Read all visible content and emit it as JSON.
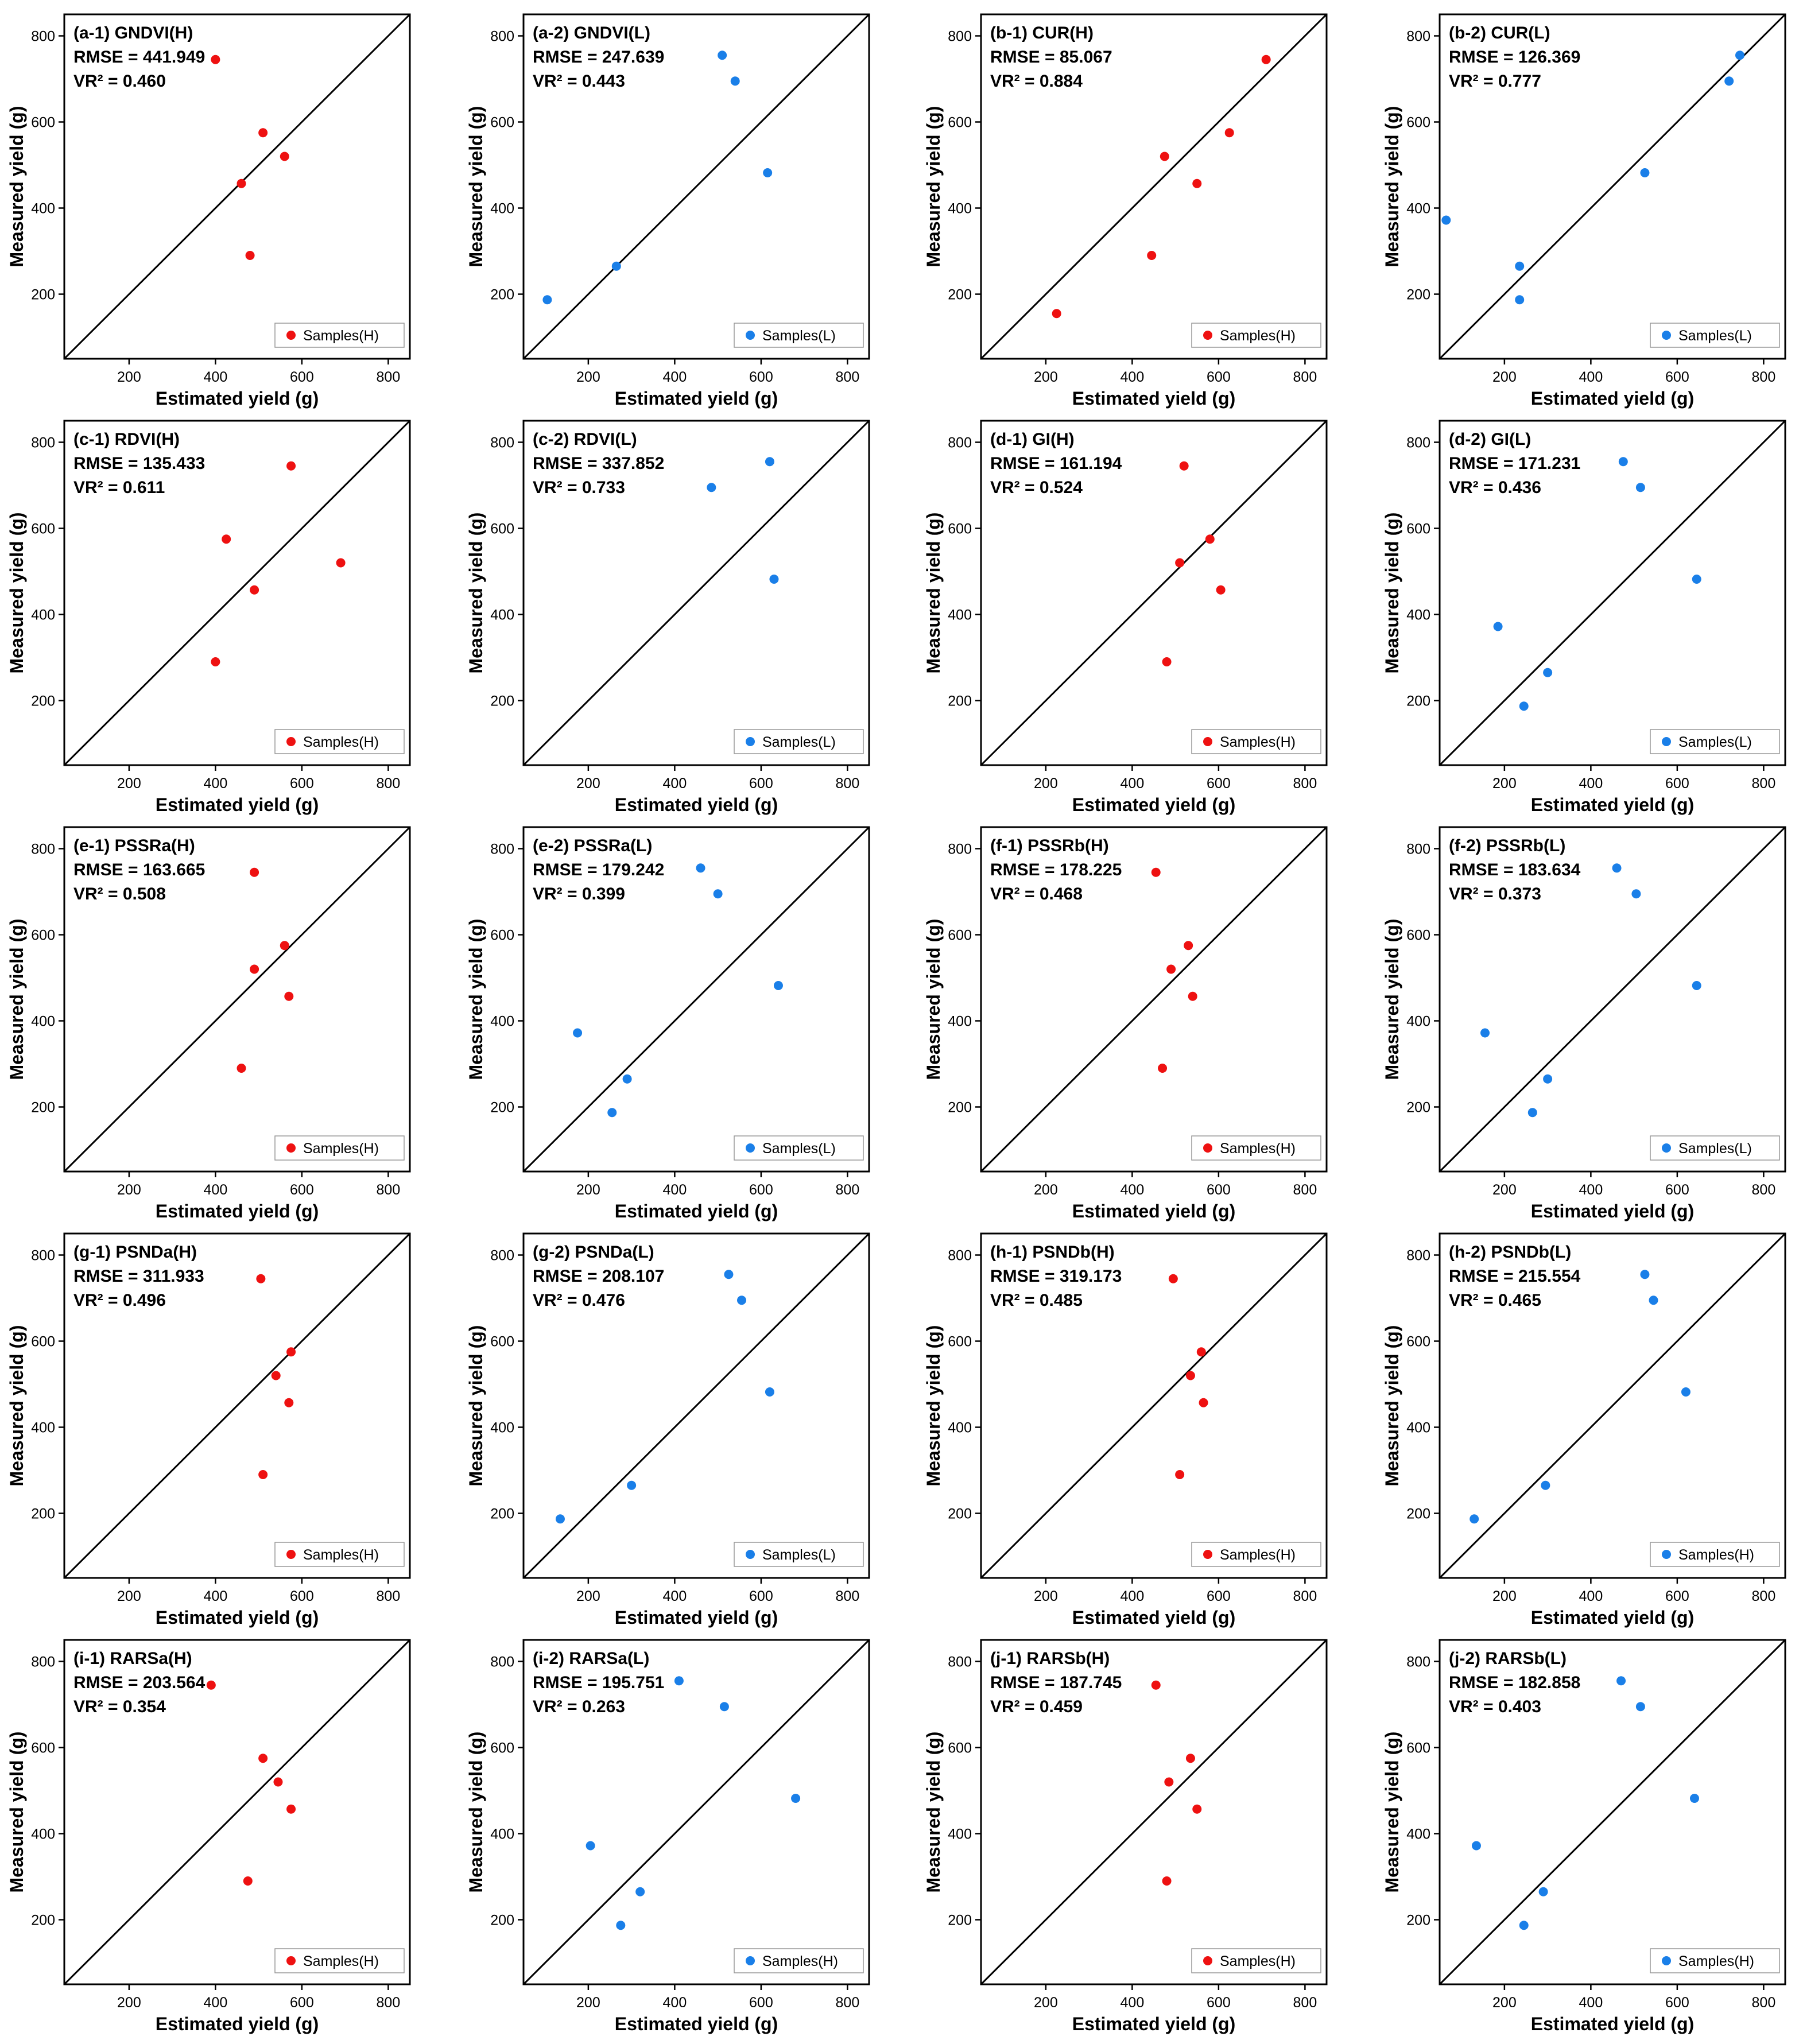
{
  "colors": {
    "H": "#ee1111",
    "L": "#1a7fe8",
    "line": "#000000",
    "frame": "#000000",
    "legend_border": "#999999"
  },
  "axes": {
    "xlabel": "Estimated yield (g)",
    "ylabel": "Measured yield (g)",
    "ticks": [
      "200",
      "400",
      "600",
      "800"
    ]
  },
  "chart_data": [
    {
      "type": "scatter",
      "panel": "(a-1) GNDVI(H)",
      "rmse": "RMSE = 441.949",
      "vr2": "VR² = 0.460",
      "legend": "Samples(H)",
      "color_key": "H",
      "xlim": [
        50,
        850
      ],
      "ylim": [
        50,
        850
      ],
      "points": [
        [
          400,
          745
        ],
        [
          510,
          575
        ],
        [
          560,
          520
        ],
        [
          460,
          457
        ],
        [
          480,
          290
        ]
      ]
    },
    {
      "type": "scatter",
      "panel": "(a-2) GNDVI(L)",
      "rmse": "RMSE = 247.639",
      "vr2": "VR² = 0.443",
      "legend": "Samples(L)",
      "color_key": "L",
      "xlim": [
        50,
        850
      ],
      "ylim": [
        50,
        850
      ],
      "points": [
        [
          510,
          755
        ],
        [
          540,
          695
        ],
        [
          615,
          482
        ],
        [
          265,
          265
        ],
        [
          105,
          187
        ]
      ]
    },
    {
      "type": "scatter",
      "panel": "(b-1) CUR(H)",
      "rmse": "RMSE = 85.067",
      "vr2": "VR² = 0.884",
      "legend": "Samples(H)",
      "color_key": "H",
      "xlim": [
        50,
        850
      ],
      "ylim": [
        50,
        850
      ],
      "points": [
        [
          710,
          745
        ],
        [
          625,
          575
        ],
        [
          475,
          520
        ],
        [
          550,
          457
        ],
        [
          445,
          290
        ],
        [
          225,
          155
        ]
      ]
    },
    {
      "type": "scatter",
      "panel": "(b-2) CUR(L)",
      "rmse": "RMSE = 126.369",
      "vr2": "VR² = 0.777",
      "legend": "Samples(L)",
      "color_key": "L",
      "xlim": [
        50,
        850
      ],
      "ylim": [
        50,
        850
      ],
      "points": [
        [
          745,
          755
        ],
        [
          720,
          695
        ],
        [
          525,
          482
        ],
        [
          65,
          372
        ],
        [
          235,
          265
        ],
        [
          235,
          187
        ]
      ]
    },
    {
      "type": "scatter",
      "panel": "(c-1) RDVI(H)",
      "rmse": "RMSE = 135.433",
      "vr2": "VR² = 0.611",
      "legend": "Samples(H)",
      "color_key": "H",
      "xlim": [
        50,
        850
      ],
      "ylim": [
        50,
        850
      ],
      "points": [
        [
          575,
          745
        ],
        [
          425,
          575
        ],
        [
          690,
          520
        ],
        [
          490,
          457
        ],
        [
          400,
          290
        ]
      ]
    },
    {
      "type": "scatter",
      "panel": "(c-2) RDVI(L)",
      "rmse": "RMSE = 337.852",
      "vr2": "VR² = 0.733",
      "legend": "Samples(L)",
      "color_key": "L",
      "xlim": [
        50,
        850
      ],
      "ylim": [
        50,
        850
      ],
      "points": [
        [
          620,
          755
        ],
        [
          485,
          695
        ],
        [
          630,
          482
        ]
      ]
    },
    {
      "type": "scatter",
      "panel": "(d-1) GI(H)",
      "rmse": "RMSE = 161.194",
      "vr2": "VR² = 0.524",
      "legend": "Samples(H)",
      "color_key": "H",
      "xlim": [
        50,
        850
      ],
      "ylim": [
        50,
        850
      ],
      "points": [
        [
          520,
          745
        ],
        [
          580,
          575
        ],
        [
          510,
          520
        ],
        [
          605,
          457
        ],
        [
          480,
          290
        ]
      ]
    },
    {
      "type": "scatter",
      "panel": "(d-2) GI(L)",
      "rmse": "RMSE = 171.231",
      "vr2": "VR² = 0.436",
      "legend": "Samples(L)",
      "color_key": "L",
      "xlim": [
        50,
        850
      ],
      "ylim": [
        50,
        850
      ],
      "points": [
        [
          475,
          755
        ],
        [
          515,
          695
        ],
        [
          645,
          482
        ],
        [
          185,
          372
        ],
        [
          300,
          265
        ],
        [
          245,
          187
        ]
      ]
    },
    {
      "type": "scatter",
      "panel": "(e-1) PSSRa(H)",
      "rmse": "RMSE = 163.665",
      "vr2": "VR² = 0.508",
      "legend": "Samples(H)",
      "color_key": "H",
      "xlim": [
        50,
        850
      ],
      "ylim": [
        50,
        850
      ],
      "points": [
        [
          490,
          745
        ],
        [
          560,
          575
        ],
        [
          490,
          520
        ],
        [
          570,
          457
        ],
        [
          460,
          290
        ]
      ]
    },
    {
      "type": "scatter",
      "panel": "(e-2) PSSRa(L)",
      "rmse": "RMSE = 179.242",
      "vr2": "VR² = 0.399",
      "legend": "Samples(L)",
      "color_key": "L",
      "xlim": [
        50,
        850
      ],
      "ylim": [
        50,
        850
      ],
      "points": [
        [
          460,
          755
        ],
        [
          500,
          695
        ],
        [
          640,
          482
        ],
        [
          175,
          372
        ],
        [
          290,
          265
        ],
        [
          255,
          187
        ]
      ]
    },
    {
      "type": "scatter",
      "panel": "(f-1) PSSRb(H)",
      "rmse": "RMSE = 178.225",
      "vr2": "VR² = 0.468",
      "legend": "Samples(H)",
      "color_key": "H",
      "xlim": [
        50,
        850
      ],
      "ylim": [
        50,
        850
      ],
      "points": [
        [
          455,
          745
        ],
        [
          530,
          575
        ],
        [
          490,
          520
        ],
        [
          540,
          457
        ],
        [
          470,
          290
        ]
      ]
    },
    {
      "type": "scatter",
      "panel": "(f-2) PSSRb(L)",
      "rmse": "RMSE = 183.634",
      "vr2": "VR² = 0.373",
      "legend": "Samples(L)",
      "color_key": "L",
      "xlim": [
        50,
        850
      ],
      "ylim": [
        50,
        850
      ],
      "points": [
        [
          460,
          755
        ],
        [
          505,
          695
        ],
        [
          645,
          482
        ],
        [
          155,
          372
        ],
        [
          300,
          265
        ],
        [
          265,
          187
        ]
      ]
    },
    {
      "type": "scatter",
      "panel": "(g-1) PSNDa(H)",
      "rmse": "RMSE = 311.933",
      "vr2": "VR² = 0.496",
      "legend": "Samples(H)",
      "color_key": "H",
      "xlim": [
        50,
        850
      ],
      "ylim": [
        50,
        850
      ],
      "points": [
        [
          505,
          745
        ],
        [
          575,
          575
        ],
        [
          540,
          520
        ],
        [
          570,
          457
        ],
        [
          510,
          290
        ]
      ]
    },
    {
      "type": "scatter",
      "panel": "(g-2) PSNDa(L)",
      "rmse": "RMSE = 208.107",
      "vr2": "VR² = 0.476",
      "legend": "Samples(L)",
      "color_key": "L",
      "xlim": [
        50,
        850
      ],
      "ylim": [
        50,
        850
      ],
      "points": [
        [
          525,
          755
        ],
        [
          555,
          695
        ],
        [
          620,
          482
        ],
        [
          300,
          265
        ],
        [
          135,
          187
        ]
      ]
    },
    {
      "type": "scatter",
      "panel": "(h-1) PSNDb(H)",
      "rmse": "RMSE = 319.173",
      "vr2": "VR² = 0.485",
      "legend": "Samples(H)",
      "color_key": "H",
      "xlim": [
        50,
        850
      ],
      "ylim": [
        50,
        850
      ],
      "points": [
        [
          495,
          745
        ],
        [
          560,
          575
        ],
        [
          535,
          520
        ],
        [
          565,
          457
        ],
        [
          510,
          290
        ]
      ]
    },
    {
      "type": "scatter",
      "panel": "(h-2) PSNDb(L)",
      "rmse": "RMSE = 215.554",
      "vr2": "VR² = 0.465",
      "legend": "Samples(H)",
      "color_key": "L",
      "xlim": [
        50,
        850
      ],
      "ylim": [
        50,
        850
      ],
      "points": [
        [
          525,
          755
        ],
        [
          545,
          695
        ],
        [
          620,
          482
        ],
        [
          295,
          265
        ],
        [
          130,
          187
        ]
      ]
    },
    {
      "type": "scatter",
      "panel": "(i-1) RARSa(H)",
      "rmse": "RMSE = 203.564",
      "vr2": "VR² = 0.354",
      "legend": "Samples(H)",
      "color_key": "H",
      "xlim": [
        50,
        850
      ],
      "ylim": [
        50,
        850
      ],
      "points": [
        [
          390,
          745
        ],
        [
          510,
          575
        ],
        [
          545,
          520
        ],
        [
          575,
          457
        ],
        [
          475,
          290
        ]
      ]
    },
    {
      "type": "scatter",
      "panel": "(i-2) RARSa(L)",
      "rmse": "RMSE = 195.751",
      "vr2": "VR² = 0.263",
      "legend": "Samples(H)",
      "color_key": "L",
      "xlim": [
        50,
        850
      ],
      "ylim": [
        50,
        850
      ],
      "points": [
        [
          410,
          755
        ],
        [
          515,
          695
        ],
        [
          680,
          482
        ],
        [
          205,
          372
        ],
        [
          320,
          265
        ],
        [
          275,
          187
        ]
      ]
    },
    {
      "type": "scatter",
      "panel": "(j-1) RARSb(H)",
      "rmse": "RMSE = 187.745",
      "vr2": "VR² = 0.459",
      "legend": "Samples(H)",
      "color_key": "H",
      "xlim": [
        50,
        850
      ],
      "ylim": [
        50,
        850
      ],
      "points": [
        [
          455,
          745
        ],
        [
          535,
          575
        ],
        [
          485,
          520
        ],
        [
          550,
          457
        ],
        [
          480,
          290
        ]
      ]
    },
    {
      "type": "scatter",
      "panel": "(j-2) RARSb(L)",
      "rmse": "RMSE = 182.858",
      "vr2": "VR² = 0.403",
      "legend": "Samples(H)",
      "color_key": "L",
      "xlim": [
        50,
        850
      ],
      "ylim": [
        50,
        850
      ],
      "points": [
        [
          470,
          755
        ],
        [
          515,
          695
        ],
        [
          640,
          482
        ],
        [
          135,
          372
        ],
        [
          290,
          265
        ],
        [
          245,
          187
        ]
      ]
    }
  ]
}
